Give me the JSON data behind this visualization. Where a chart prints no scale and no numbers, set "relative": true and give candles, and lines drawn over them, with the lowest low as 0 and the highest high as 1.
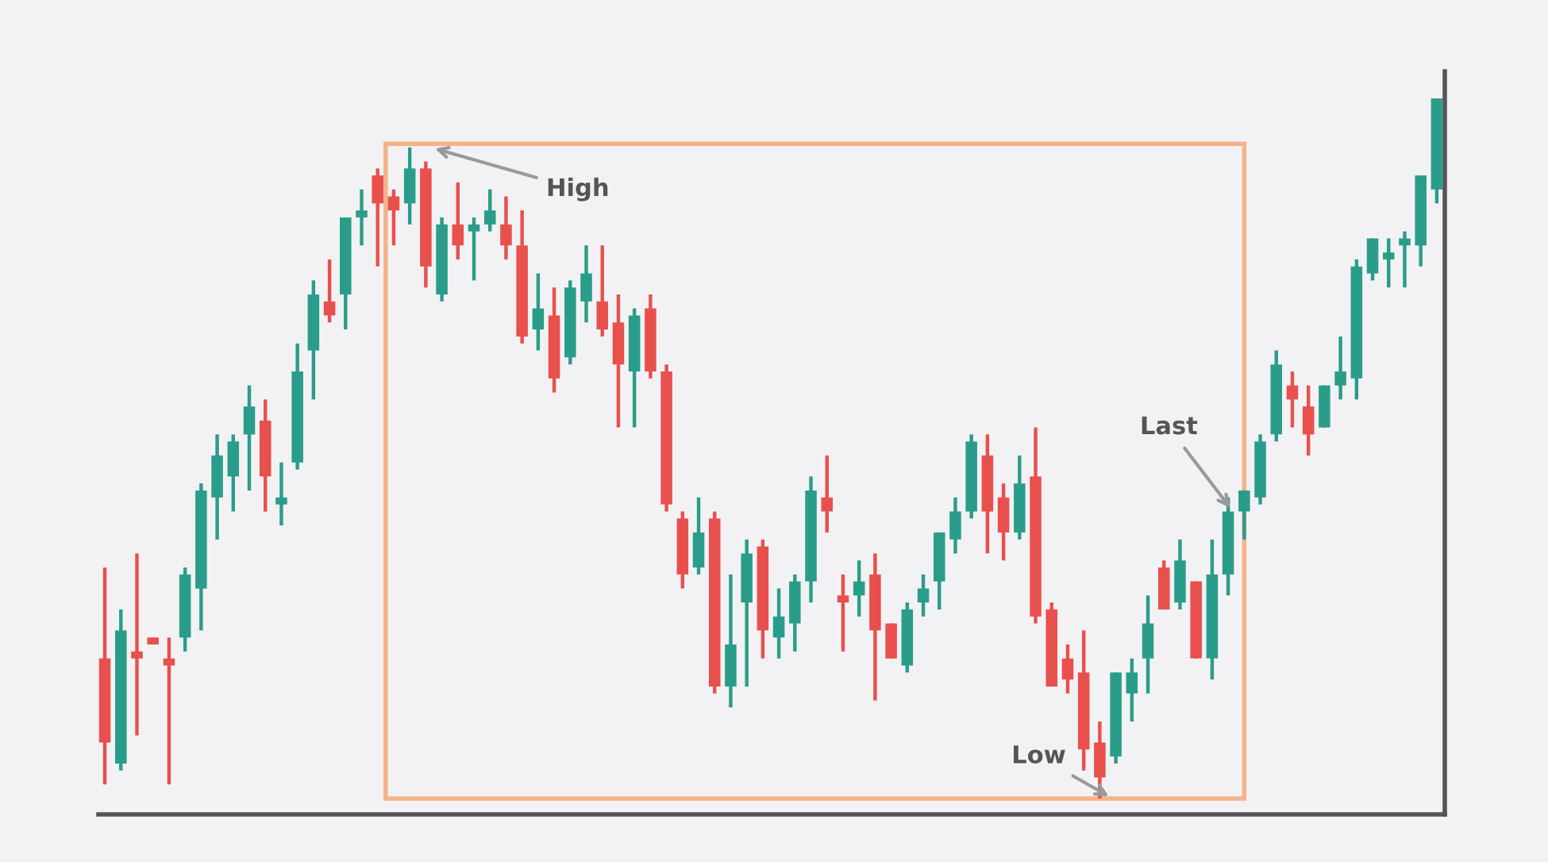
{
  "chart_data": {
    "type": "candlestick",
    "relative": true,
    "categories": [
      null,
      null,
      null,
      null,
      null,
      null,
      null,
      null,
      null,
      null,
      null,
      null,
      null,
      null,
      null,
      null,
      null,
      null,
      null,
      null,
      null,
      null,
      null,
      null,
      null,
      null,
      null,
      null,
      null,
      null,
      null,
      null,
      null,
      null,
      null,
      null,
      null,
      null,
      null,
      null,
      null,
      null,
      null,
      null,
      null,
      null,
      null,
      null,
      null,
      null,
      null,
      null,
      null,
      null,
      null,
      null,
      null,
      null,
      null,
      null,
      null,
      null,
      null,
      null,
      null,
      null,
      null,
      null,
      null,
      null,
      null,
      null,
      null,
      null,
      null,
      null,
      null,
      null,
      null,
      null,
      null,
      null,
      null,
      null
    ],
    "ohlc": [
      [
        0.2,
        0.33,
        0.02,
        0.08
      ],
      [
        0.05,
        0.27,
        0.04,
        0.24
      ],
      [
        0.21,
        0.35,
        0.09,
        0.2
      ],
      [
        0.23,
        0.23,
        0.22,
        0.22
      ],
      [
        0.2,
        0.23,
        0.02,
        0.19
      ],
      [
        0.23,
        0.33,
        0.21,
        0.32
      ],
      [
        0.3,
        0.45,
        0.24,
        0.44
      ],
      [
        0.43,
        0.52,
        0.37,
        0.49
      ],
      [
        0.46,
        0.52,
        0.41,
        0.51
      ],
      [
        0.52,
        0.59,
        0.44,
        0.56
      ],
      [
        0.54,
        0.57,
        0.41,
        0.46
      ],
      [
        0.42,
        0.48,
        0.39,
        0.43
      ],
      [
        0.48,
        0.65,
        0.47,
        0.61
      ],
      [
        0.64,
        0.74,
        0.57,
        0.72
      ],
      [
        0.71,
        0.77,
        0.68,
        0.69
      ],
      [
        0.72,
        0.83,
        0.67,
        0.83
      ],
      [
        0.83,
        0.87,
        0.79,
        0.84
      ],
      [
        0.89,
        0.9,
        0.76,
        0.85
      ],
      [
        0.86,
        0.87,
        0.79,
        0.84
      ],
      [
        0.85,
        0.93,
        0.82,
        0.9
      ],
      [
        0.9,
        0.91,
        0.73,
        0.76
      ],
      [
        0.72,
        0.83,
        0.71,
        0.82
      ],
      [
        0.82,
        0.88,
        0.77,
        0.79
      ],
      [
        0.81,
        0.83,
        0.74,
        0.82
      ],
      [
        0.82,
        0.87,
        0.81,
        0.84
      ],
      [
        0.82,
        0.86,
        0.77,
        0.79
      ],
      [
        0.79,
        0.84,
        0.65,
        0.66
      ],
      [
        0.67,
        0.75,
        0.64,
        0.7
      ],
      [
        0.69,
        0.73,
        0.58,
        0.6
      ],
      [
        0.63,
        0.74,
        0.62,
        0.73
      ],
      [
        0.71,
        0.79,
        0.68,
        0.75
      ],
      [
        0.71,
        0.79,
        0.66,
        0.67
      ],
      [
        0.68,
        0.72,
        0.53,
        0.62
      ],
      [
        0.61,
        0.7,
        0.53,
        0.69
      ],
      [
        0.7,
        0.72,
        0.6,
        0.61
      ],
      [
        0.61,
        0.62,
        0.41,
        0.42
      ],
      [
        0.4,
        0.41,
        0.3,
        0.32
      ],
      [
        0.33,
        0.43,
        0.32,
        0.38
      ],
      [
        0.4,
        0.41,
        0.15,
        0.16
      ],
      [
        0.16,
        0.32,
        0.13,
        0.22
      ],
      [
        0.28,
        0.37,
        0.16,
        0.35
      ],
      [
        0.36,
        0.37,
        0.2,
        0.24
      ],
      [
        0.23,
        0.3,
        0.2,
        0.26
      ],
      [
        0.25,
        0.32,
        0.21,
        0.31
      ],
      [
        0.31,
        0.46,
        0.28,
        0.44
      ],
      [
        0.43,
        0.49,
        0.38,
        0.41
      ],
      [
        0.29,
        0.32,
        0.21,
        0.28
      ],
      [
        0.29,
        0.34,
        0.26,
        0.31
      ],
      [
        0.32,
        0.35,
        0.14,
        0.24
      ],
      [
        0.25,
        0.25,
        0.2,
        0.2
      ],
      [
        0.19,
        0.28,
        0.18,
        0.27
      ],
      [
        0.28,
        0.32,
        0.26,
        0.3
      ],
      [
        0.31,
        0.38,
        0.27,
        0.38
      ],
      [
        0.37,
        0.43,
        0.35,
        0.41
      ],
      [
        0.41,
        0.52,
        0.4,
        0.51
      ],
      [
        0.49,
        0.52,
        0.35,
        0.41
      ],
      [
        0.43,
        0.45,
        0.34,
        0.38
      ],
      [
        0.38,
        0.49,
        0.37,
        0.45
      ],
      [
        0.46,
        0.53,
        0.25,
        0.26
      ],
      [
        0.27,
        0.28,
        0.16,
        0.16
      ],
      [
        0.2,
        0.22,
        0.15,
        0.17
      ],
      [
        0.18,
        0.24,
        0.04,
        0.07
      ],
      [
        0.08,
        0.11,
        0.0,
        0.03
      ],
      [
        0.06,
        0.18,
        0.05,
        0.18
      ],
      [
        0.15,
        0.2,
        0.11,
        0.18
      ],
      [
        0.2,
        0.29,
        0.15,
        0.25
      ],
      [
        0.33,
        0.34,
        0.27,
        0.27
      ],
      [
        0.28,
        0.37,
        0.27,
        0.34
      ],
      [
        0.31,
        0.31,
        0.2,
        0.2
      ],
      [
        0.2,
        0.37,
        0.17,
        0.32
      ],
      [
        0.32,
        0.43,
        0.29,
        0.41
      ],
      [
        0.41,
        0.44,
        0.37,
        0.44
      ],
      [
        0.43,
        0.52,
        0.42,
        0.51
      ],
      [
        0.52,
        0.64,
        0.51,
        0.62
      ],
      [
        0.59,
        0.61,
        0.53,
        0.57
      ],
      [
        0.56,
        0.59,
        0.49,
        0.52
      ],
      [
        0.53,
        0.59,
        0.53,
        0.59
      ],
      [
        0.59,
        0.66,
        0.57,
        0.61
      ],
      [
        0.6,
        0.77,
        0.57,
        0.76
      ],
      [
        0.75,
        0.8,
        0.74,
        0.8
      ],
      [
        0.77,
        0.8,
        0.73,
        0.78
      ],
      [
        0.79,
        0.81,
        0.73,
        0.8
      ],
      [
        0.79,
        0.89,
        0.76,
        0.89
      ],
      [
        0.87,
        1.0,
        0.85,
        1.0
      ]
    ],
    "annotations": [
      "High",
      "Low",
      "Last"
    ]
  }
}
